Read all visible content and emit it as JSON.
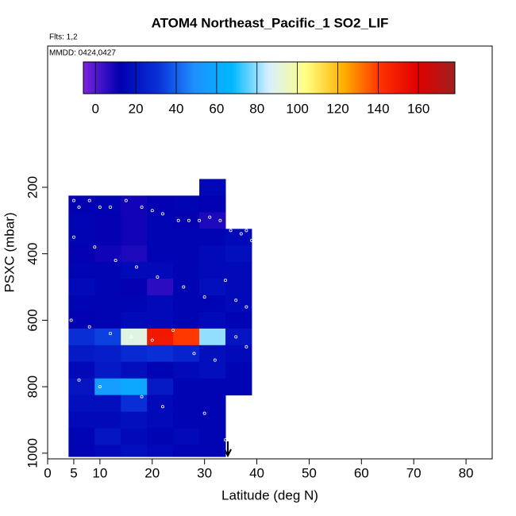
{
  "chart_data": {
    "type": "heatmap",
    "title": "ATOM4 Northeast_Pacific_1 SO2_LIF",
    "flights": "Flts: 1,2",
    "dates": "MMDD: 0424,0427",
    "x_label": "Latitude (deg N)",
    "y_label": "PSXC (mbar)",
    "xlim": [
      0,
      85
    ],
    "xticks": [
      0,
      5,
      10,
      20,
      30,
      40,
      50,
      60,
      70,
      80
    ],
    "ylim": [
      1017,
      -225
    ],
    "yticks": [
      200,
      400,
      600,
      800,
      1000
    ],
    "xbins": [
      4,
      9,
      14,
      19,
      24,
      29,
      34,
      39
    ],
    "ybins": [
      175,
      225,
      275,
      325,
      375,
      425,
      475,
      525,
      575,
      625,
      675,
      725,
      775,
      825,
      875,
      925,
      975,
      1010
    ],
    "values": [
      [
        null,
        null,
        null,
        null,
        null,
        15,
        null
      ],
      [
        12,
        14,
        10,
        12,
        14,
        12,
        null
      ],
      [
        14,
        12,
        10,
        14,
        12,
        8,
        null
      ],
      [
        14,
        12,
        10,
        14,
        14,
        14,
        16
      ],
      [
        12,
        10,
        8,
        14,
        14,
        16,
        18
      ],
      [
        14,
        14,
        16,
        16,
        14,
        16,
        16
      ],
      [
        16,
        14,
        12,
        6,
        14,
        18,
        16
      ],
      [
        14,
        14,
        14,
        16,
        14,
        14,
        16
      ],
      [
        12,
        14,
        16,
        16,
        14,
        16,
        14
      ],
      [
        30,
        34,
        90,
        150,
        140,
        80,
        20
      ],
      [
        22,
        24,
        28,
        30,
        26,
        18,
        16
      ],
      [
        16,
        22,
        18,
        14,
        16,
        18,
        14
      ],
      [
        20,
        55,
        60,
        22,
        14,
        14,
        14
      ],
      [
        18,
        18,
        30,
        16,
        14,
        14,
        null
      ],
      [
        16,
        16,
        18,
        16,
        14,
        14,
        null
      ],
      [
        14,
        20,
        16,
        14,
        16,
        14,
        null
      ],
      [
        14,
        16,
        18,
        16,
        14,
        14,
        null
      ]
    ],
    "clim": [
      -6,
      178
    ],
    "cticks": [
      0,
      20,
      40,
      60,
      80,
      100,
      120,
      140,
      160
    ],
    "colorscale": [
      "#7b22e0",
      "#0000b0",
      "#0a30d8",
      "#1e90ff",
      "#00b8ff",
      "#d8f0ff",
      "#ffff80",
      "#ffb000",
      "#ff3000",
      "#e00000",
      "#a02020"
    ],
    "points": {
      "x": [
        5,
        6,
        8,
        10,
        12,
        15,
        18,
        20,
        22,
        25,
        27,
        29,
        31,
        33,
        35,
        37,
        38,
        39,
        5,
        9,
        13,
        17,
        21,
        26,
        30,
        34,
        36,
        38,
        4.5,
        8,
        12,
        16,
        20,
        24,
        28,
        32,
        36,
        38,
        6,
        10,
        18,
        22,
        30,
        34
      ],
      "y": [
        240,
        260,
        240,
        260,
        260,
        240,
        260,
        270,
        280,
        300,
        300,
        300,
        290,
        300,
        330,
        340,
        330,
        360,
        350,
        380,
        420,
        440,
        470,
        500,
        530,
        480,
        540,
        560,
        600,
        620,
        640,
        650,
        660,
        630,
        700,
        720,
        650,
        680,
        780,
        800,
        830,
        860,
        880,
        960
      ]
    },
    "point_color": "#ffffff",
    "frame_color": "#000000"
  }
}
